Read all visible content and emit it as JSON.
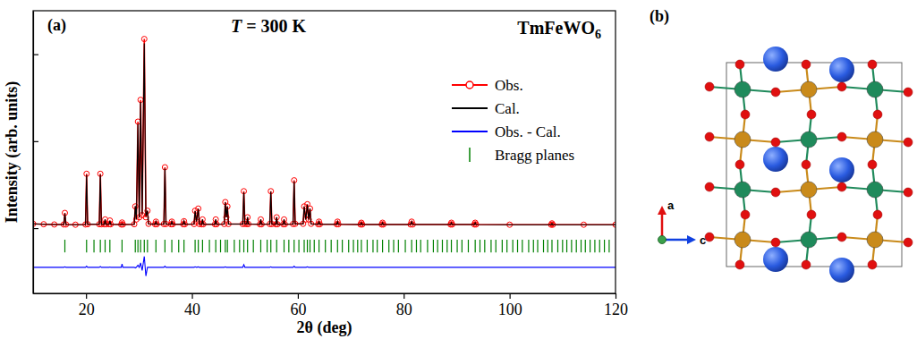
{
  "chart_data": {
    "type": "line",
    "panel_label": "(a)",
    "title": "T = 300 K",
    "subtitle": "TmFeWO6",
    "x_label": "2θ (deg)",
    "y_label": "Intensity (arb. units)",
    "x": [
      10,
      12,
      14,
      15.8,
      16.0,
      16.2,
      18,
      19.9,
      20.1,
      20.3,
      22.5,
      22.7,
      22.9,
      23.45,
      23.6,
      23.75,
      24.35,
      24.5,
      24.65,
      26.65,
      26.8,
      26.95,
      29.1,
      29.3,
      29.5,
      29.8,
      30.05,
      30.3,
      30.6,
      31.0,
      31.3,
      31.6,
      31.8,
      33.05,
      33.2,
      33.35,
      34.7,
      34.9,
      35.1,
      36.05,
      36.2,
      36.35,
      38.35,
      38.5,
      38.65,
      40.4,
      40.6,
      40.85,
      41.2,
      41.4,
      41.85,
      42.0,
      42.15,
      44.35,
      44.5,
      44.65,
      46.1,
      46.3,
      46.5,
      46.7,
      46.9,
      49.6,
      49.8,
      50.0,
      50.35,
      50.5,
      50.65,
      52.85,
      53.0,
      53.15,
      54.7,
      54.9,
      55.1,
      55.85,
      56.0,
      56.15,
      57.25,
      57.4,
      57.55,
      59.1,
      59.3,
      59.5,
      61.0,
      61.2,
      61.5,
      61.8,
      62.05,
      62.3,
      62.5,
      63.85,
      64.0,
      64.15,
      67.35,
      67.5,
      67.65,
      71.85,
      72.0,
      72.15,
      75.85,
      76.0,
      76.15,
      81.3,
      81.5,
      81.7,
      88.85,
      89.0,
      89.15,
      93.35,
      93.5,
      93.65,
      100,
      107.85,
      108,
      108.15,
      114,
      120
    ],
    "series": [
      {
        "name": "Obs.",
        "color": "#ff0000",
        "marker": "circle",
        "line_style": "solid",
        "values": [
          2.0,
          1.8,
          1.7,
          1.7,
          7.0,
          1.7,
          1.6,
          1.7,
          25,
          1.8,
          1.8,
          25,
          1.8,
          1.8,
          4,
          1.8,
          1.8,
          3.5,
          1.8,
          1.7,
          2.6,
          1.7,
          1.8,
          10,
          4,
          49,
          5,
          59,
          6,
          87,
          5,
          8,
          2,
          1.8,
          3,
          1.8,
          1.9,
          28,
          1.9,
          1.8,
          3,
          1.8,
          1.8,
          3.2,
          1.8,
          1.9,
          8,
          3,
          9,
          1.9,
          1.8,
          4,
          1.8,
          1.8,
          4,
          1.8,
          1.9,
          12,
          5,
          10,
          1.9,
          1.9,
          17,
          2,
          1.9,
          5,
          1.9,
          1.8,
          4,
          1.8,
          1.9,
          17,
          1.9,
          1.8,
          5,
          1.8,
          1.8,
          4,
          1.8,
          1.9,
          22,
          2,
          2,
          10,
          4,
          11,
          4,
          9,
          2,
          1.8,
          3,
          1.8,
          1.8,
          3,
          1.8,
          1.7,
          2.5,
          1.7,
          1.7,
          2.5,
          1.7,
          1.7,
          3,
          1.7,
          1.7,
          2.5,
          1.7,
          1.7,
          2.5,
          1.7,
          1.6,
          1.6,
          2.2,
          1.6,
          1.6,
          1.6
        ]
      },
      {
        "name": "Cal.",
        "color": "#000000",
        "line_style": "solid",
        "values": [
          2.0,
          1.8,
          1.7,
          1.7,
          6.8,
          1.7,
          1.6,
          1.7,
          24.5,
          1.8,
          1.8,
          24.6,
          1.8,
          1.8,
          4,
          1.8,
          1.8,
          3.4,
          1.8,
          1.7,
          2.0,
          1.7,
          1.8,
          10.2,
          4,
          48,
          5,
          58,
          6.5,
          85,
          5.5,
          8,
          2,
          1.8,
          3,
          1.8,
          1.9,
          27.5,
          1.9,
          1.8,
          3,
          1.8,
          1.8,
          3.2,
          1.8,
          1.9,
          7.8,
          3,
          8.8,
          1.9,
          1.8,
          4,
          1.8,
          1.8,
          4,
          1.8,
          1.9,
          11.8,
          5,
          10,
          1.9,
          1.9,
          16.5,
          2,
          1.9,
          5,
          1.9,
          1.8,
          4,
          1.8,
          1.9,
          16.8,
          1.9,
          1.8,
          5,
          1.8,
          1.8,
          4,
          1.8,
          1.9,
          21.5,
          2,
          2,
          10,
          4,
          10.8,
          4,
          9,
          2,
          1.8,
          3,
          1.8,
          1.8,
          3,
          1.8,
          1.7,
          2.5,
          1.7,
          1.7,
          2.5,
          1.7,
          1.7,
          3,
          1.7,
          1.7,
          2.5,
          1.7,
          1.7,
          2.5,
          1.7,
          1.6,
          1.6,
          2.2,
          1.6,
          1.6,
          1.6
        ]
      },
      {
        "name": "Obs. - Cal.",
        "color": "#0000ff",
        "line_style": "solid",
        "values": [
          -18,
          -18,
          -18,
          -18,
          -17.8,
          -18,
          -18,
          -18,
          -17.5,
          -18,
          -18,
          -17.6,
          -18,
          -18,
          -18,
          -18,
          -18,
          -17.9,
          -18,
          -18,
          -16.5,
          -18,
          -18,
          -18.3,
          -18,
          -17,
          -18,
          -16,
          -19.5,
          -13,
          -22,
          -18,
          -18,
          -18,
          -18,
          -18,
          -18,
          -17.5,
          -18,
          -18,
          -18,
          -18,
          -18,
          -18,
          -18,
          -18,
          -17.8,
          -18,
          -17.8,
          -18,
          -18,
          -18,
          -18,
          -18,
          -18,
          -18,
          -18,
          -17.8,
          -18,
          -18,
          -18,
          -18,
          -16.8,
          -18,
          -18,
          -18,
          -18,
          -18,
          -18,
          -18,
          -18,
          -17.8,
          -18,
          -18,
          -18,
          -18,
          -18,
          -18,
          -18,
          -18,
          -17.5,
          -18,
          -18,
          -18,
          -18,
          -17.8,
          -18,
          -18,
          -18,
          -18,
          -18,
          -18,
          -18,
          -18,
          -18,
          -18,
          -18,
          -18,
          -18,
          -18,
          -18,
          -18,
          -18,
          -18,
          -18,
          -18,
          -18,
          -18,
          -18,
          -18,
          -18,
          -18,
          -18,
          -18,
          -18,
          -18
        ]
      }
    ],
    "bragg": {
      "name": "Bragg planes",
      "color": "#008000",
      "x": [
        16.0,
        20.1,
        21.5,
        22.7,
        23.6,
        24.5,
        26.8,
        29.3,
        29.8,
        30.3,
        31.0,
        31.6,
        33.2,
        34.9,
        36.2,
        37.5,
        38.5,
        40.6,
        41.2,
        42.0,
        43.3,
        44.5,
        45.4,
        46.3,
        46.7,
        48.0,
        49.0,
        49.8,
        50.5,
        51.6,
        53.0,
        54.2,
        54.9,
        56.0,
        57.4,
        58.3,
        59.3,
        60.2,
        61.2,
        61.8,
        62.3,
        63.1,
        64.0,
        65.2,
        66.3,
        67.5,
        68.4,
        69.6,
        70.5,
        71.3,
        72.0,
        73.1,
        74.2,
        75.0,
        76.0,
        77.2,
        78.1,
        79.0,
        80.3,
        81.5,
        82.4,
        83.2,
        84.5,
        85.6,
        86.4,
        87.3,
        88.2,
        89.0,
        90.1,
        91.0,
        92.2,
        93.5,
        94.4,
        95.3,
        96.5,
        97.4,
        98.6,
        99.5,
        100.6,
        101.5,
        102.4,
        103.6,
        104.5,
        105.3,
        106.4,
        107.2,
        108.0,
        109.1,
        110.0,
        110.8,
        111.7,
        112.6,
        113.5,
        114.3,
        115.2,
        116.1,
        117.0,
        117.9,
        118.8
      ]
    },
    "xlim": [
      10,
      120
    ],
    "xticks": [
      20,
      40,
      60,
      80,
      100,
      120
    ],
    "ylim": [
      -30,
      100
    ],
    "yticks": [
      0,
      40,
      80
    ],
    "tick_labels": "x",
    "legend": "upper right"
  },
  "structure": {
    "panel_label": "(b)",
    "axis_labels": [
      "a",
      "c"
    ]
  }
}
